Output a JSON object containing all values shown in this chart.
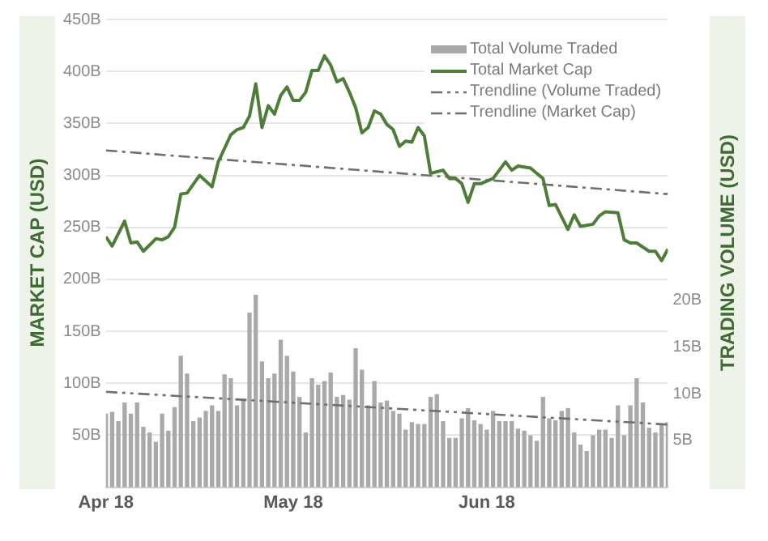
{
  "chart_data": {
    "type": "bar",
    "ylabel": "MARKET CAP (USD)",
    "y2label": "TRADING VOLUME (USD)",
    "x": [
      "2018-04-01",
      "2018-04-02",
      "2018-04-03",
      "2018-04-04",
      "2018-04-05",
      "2018-04-06",
      "2018-04-07",
      "2018-04-08",
      "2018-04-09",
      "2018-04-10",
      "2018-04-11",
      "2018-04-12",
      "2018-04-13",
      "2018-04-14",
      "2018-04-15",
      "2018-04-16",
      "2018-04-17",
      "2018-04-18",
      "2018-04-19",
      "2018-04-20",
      "2018-04-21",
      "2018-04-22",
      "2018-04-23",
      "2018-04-24",
      "2018-04-25",
      "2018-04-26",
      "2018-04-27",
      "2018-04-28",
      "2018-04-29",
      "2018-04-30",
      "2018-05-01",
      "2018-05-02",
      "2018-05-03",
      "2018-05-04",
      "2018-05-05",
      "2018-05-06",
      "2018-05-07",
      "2018-05-08",
      "2018-05-09",
      "2018-05-10",
      "2018-05-11",
      "2018-05-12",
      "2018-05-13",
      "2018-05-14",
      "2018-05-15",
      "2018-05-16",
      "2018-05-17",
      "2018-05-18",
      "2018-05-19",
      "2018-05-20",
      "2018-05-21",
      "2018-05-22",
      "2018-05-23",
      "2018-05-24",
      "2018-05-25",
      "2018-05-26",
      "2018-05-27",
      "2018-05-28",
      "2018-05-29",
      "2018-05-30",
      "2018-05-31",
      "2018-06-01",
      "2018-06-02",
      "2018-06-03",
      "2018-06-04",
      "2018-06-05",
      "2018-06-06",
      "2018-06-07",
      "2018-06-08",
      "2018-06-09",
      "2018-06-10",
      "2018-06-11",
      "2018-06-12",
      "2018-06-13",
      "2018-06-14",
      "2018-06-15",
      "2018-06-16",
      "2018-06-17",
      "2018-06-18",
      "2018-06-19",
      "2018-06-20",
      "2018-06-21",
      "2018-06-22",
      "2018-06-23",
      "2018-06-24",
      "2018-06-25",
      "2018-06-26",
      "2018-06-27",
      "2018-06-28",
      "2018-06-29",
      "2018-06-30"
    ],
    "series": [
      {
        "name": "Total Volume Traded",
        "color": "#a9a9a9",
        "axis": "y2",
        "values": [
          7.8,
          8.0,
          7.0,
          9.0,
          7.8,
          9.0,
          6.4,
          5.8,
          4.8,
          7.8,
          6.0,
          8.5,
          14.0,
          12.1,
          7.0,
          7.4,
          8.1,
          8.7,
          8.1,
          12.0,
          11.6,
          8.7,
          9.4,
          18.6,
          20.5,
          13.4,
          11.6,
          12.1,
          15.7,
          14.0,
          12.3,
          9.6,
          5.8,
          11.6,
          10.9,
          11.3,
          12.2,
          9.6,
          9.8,
          9.3,
          14.8,
          12.5,
          8.7,
          11.3,
          9.0,
          9.2,
          8.1,
          7.8,
          6.1,
          6.9,
          6.7,
          6.7,
          9.6,
          9.9,
          7.0,
          5.2,
          5.2,
          7.3,
          8.4,
          7.1,
          6.7,
          6.1,
          8.1,
          7.0,
          7.0,
          7.0,
          6.2,
          6.0,
          5.5,
          4.9,
          9.6,
          7.3,
          7.1,
          8.1,
          8.4,
          5.8,
          4.5,
          3.8,
          5.5,
          6.1,
          6.1,
          5.2,
          8.7,
          5.5,
          8.7,
          11.6,
          9.0,
          6.3,
          5.8,
          6.7,
          6.9
        ]
      },
      {
        "type": "line",
        "name": "Total Market Cap",
        "color": "#4e7d3a",
        "x": [
          "2018-04-01",
          "2018-04-02",
          "2018-04-04",
          "2018-04-05",
          "2018-04-06",
          "2018-04-07",
          "2018-04-09",
          "2018-04-10",
          "2018-04-11",
          "2018-04-12",
          "2018-04-13",
          "2018-04-14",
          "2018-04-16",
          "2018-04-18",
          "2018-04-19",
          "2018-04-21",
          "2018-04-22",
          "2018-04-23",
          "2018-04-24",
          "2018-04-25",
          "2018-04-26",
          "2018-04-27",
          "2018-04-28",
          "2018-04-29",
          "2018-04-30",
          "2018-05-01",
          "2018-05-02",
          "2018-05-03",
          "2018-05-04",
          "2018-05-05",
          "2018-05-06",
          "2018-05-07",
          "2018-05-08",
          "2018-05-09",
          "2018-05-10",
          "2018-05-11",
          "2018-05-12",
          "2018-05-13",
          "2018-05-14",
          "2018-05-15",
          "2018-05-16",
          "2018-05-17",
          "2018-05-18",
          "2018-05-19",
          "2018-05-20",
          "2018-05-21",
          "2018-05-22",
          "2018-05-23",
          "2018-05-25",
          "2018-05-26",
          "2018-05-27",
          "2018-05-28",
          "2018-05-29",
          "2018-05-30",
          "2018-05-31",
          "2018-06-02",
          "2018-06-04",
          "2018-06-05",
          "2018-06-06",
          "2018-06-08",
          "2018-06-09",
          "2018-06-10",
          "2018-06-11",
          "2018-06-12",
          "2018-06-14",
          "2018-06-15",
          "2018-06-16",
          "2018-06-18",
          "2018-06-19",
          "2018-06-20",
          "2018-06-22",
          "2018-06-23",
          "2018-06-24",
          "2018-06-25",
          "2018-06-27",
          "2018-06-28",
          "2018-06-29",
          "2018-06-30"
        ],
        "values": [
          241,
          232,
          256,
          235,
          236,
          227,
          239,
          238,
          241,
          250,
          282,
          283,
          300,
          289,
          313,
          339,
          344,
          346,
          357,
          388,
          346,
          367,
          359,
          377,
          385,
          372,
          372,
          380,
          401,
          401,
          415,
          406,
          390,
          393,
          380,
          365,
          341,
          346,
          362,
          359,
          349,
          344,
          328,
          333,
          332,
          346,
          338,
          302,
          305,
          297,
          297,
          292,
          274,
          292,
          292,
          297,
          313,
          305,
          309,
          307,
          302,
          297,
          271,
          272,
          248,
          262,
          251,
          253,
          261,
          265,
          264,
          238,
          235,
          235,
          227,
          227,
          218,
          229
        ]
      },
      {
        "type": "line",
        "name": "Trendline (Volume Traded)",
        "color": "#6e6e6e",
        "axis": "y2",
        "line_style": "dotted",
        "x": [
          "2018-04-01",
          "2018-06-30"
        ],
        "values": [
          10.2,
          6.7
        ]
      },
      {
        "type": "line",
        "name": "Trendline (Market Cap)",
        "color": "#6e6e6e",
        "line_style": "dashed",
        "x": [
          "2018-04-01",
          "2018-06-30"
        ],
        "values": [
          324,
          282
        ]
      }
    ],
    "xlim": [
      "2018-04-01",
      "2018-06-30"
    ],
    "xticks": [
      {
        "value": "2018-04-01",
        "label": "Apr 18"
      },
      {
        "value": "2018-05-01",
        "label": "May 18"
      },
      {
        "value": "2018-06-01",
        "label": "Jun 18"
      }
    ],
    "ylim": [
      0,
      450
    ],
    "yticks": [
      {
        "value": 50,
        "label": "50B"
      },
      {
        "value": 100,
        "label": "100B"
      },
      {
        "value": 150,
        "label": "150B"
      },
      {
        "value": 200,
        "label": "200B"
      },
      {
        "value": 250,
        "label": "250B"
      },
      {
        "value": 300,
        "label": "300B"
      },
      {
        "value": 350,
        "label": "350B"
      },
      {
        "value": 400,
        "label": "400B"
      },
      {
        "value": 450,
        "label": "450B"
      }
    ],
    "y2lim": [
      0,
      50
    ],
    "y2ticks": [
      {
        "value": 5,
        "label": "5B"
      },
      {
        "value": 10,
        "label": "10B"
      },
      {
        "value": 15,
        "label": "15B"
      },
      {
        "value": 20,
        "label": "20B"
      }
    ],
    "grid": "y",
    "legend": "top right",
    "marker": "none"
  }
}
